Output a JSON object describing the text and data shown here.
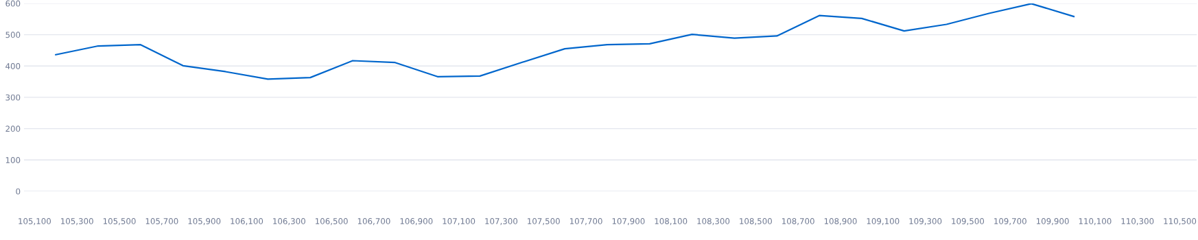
{
  "chart_data": {
    "type": "line",
    "x": [
      105200,
      105400,
      105600,
      105800,
      106000,
      106200,
      106400,
      106600,
      106800,
      107000,
      107200,
      107400,
      107600,
      107800,
      108000,
      108200,
      108400,
      108600,
      108800,
      109000,
      109200,
      109400,
      109600,
      109800,
      110000
    ],
    "series": [
      {
        "color": "#0066cc",
        "values": [
          436,
          464,
          468,
          401,
          382,
          358,
          363,
          417,
          411,
          366,
          368,
          412,
          455,
          468,
          471,
          501,
          489,
          496,
          561,
          552,
          512,
          533,
          568,
          599,
          558
        ]
      }
    ],
    "xlim": [
      105050,
      110580
    ],
    "xticks": [
      {
        "value": 105100,
        "label": "105,100"
      },
      {
        "value": 105300,
        "label": "105,300"
      },
      {
        "value": 105500,
        "label": "105,500"
      },
      {
        "value": 105700,
        "label": "105,700"
      },
      {
        "value": 105900,
        "label": "105,900"
      },
      {
        "value": 106100,
        "label": "106,100"
      },
      {
        "value": 106300,
        "label": "106,300"
      },
      {
        "value": 106500,
        "label": "106,500"
      },
      {
        "value": 106700,
        "label": "106,700"
      },
      {
        "value": 106900,
        "label": "106,900"
      },
      {
        "value": 107100,
        "label": "107,100"
      },
      {
        "value": 107300,
        "label": "107,300"
      },
      {
        "value": 107500,
        "label": "107,500"
      },
      {
        "value": 107700,
        "label": "107,700"
      },
      {
        "value": 107900,
        "label": "107,900"
      },
      {
        "value": 108100,
        "label": "108,100"
      },
      {
        "value": 108300,
        "label": "108,300"
      },
      {
        "value": 108500,
        "label": "108,500"
      },
      {
        "value": 108700,
        "label": "108,700"
      },
      {
        "value": 108900,
        "label": "108,900"
      },
      {
        "value": 109100,
        "label": "109,100"
      },
      {
        "value": 109300,
        "label": "109,300"
      },
      {
        "value": 109500,
        "label": "109,500"
      },
      {
        "value": 109700,
        "label": "109,700"
      },
      {
        "value": 109900,
        "label": "109,900"
      },
      {
        "value": 110100,
        "label": "110,100"
      },
      {
        "value": 110300,
        "label": "110,300"
      },
      {
        "value": 110500,
        "label": "110,500"
      }
    ],
    "ylim": [
      0,
      600
    ],
    "yticks": [
      0,
      100,
      200,
      300,
      400,
      500,
      600
    ],
    "grid": "y",
    "marker": "none",
    "line_style": "solid"
  }
}
